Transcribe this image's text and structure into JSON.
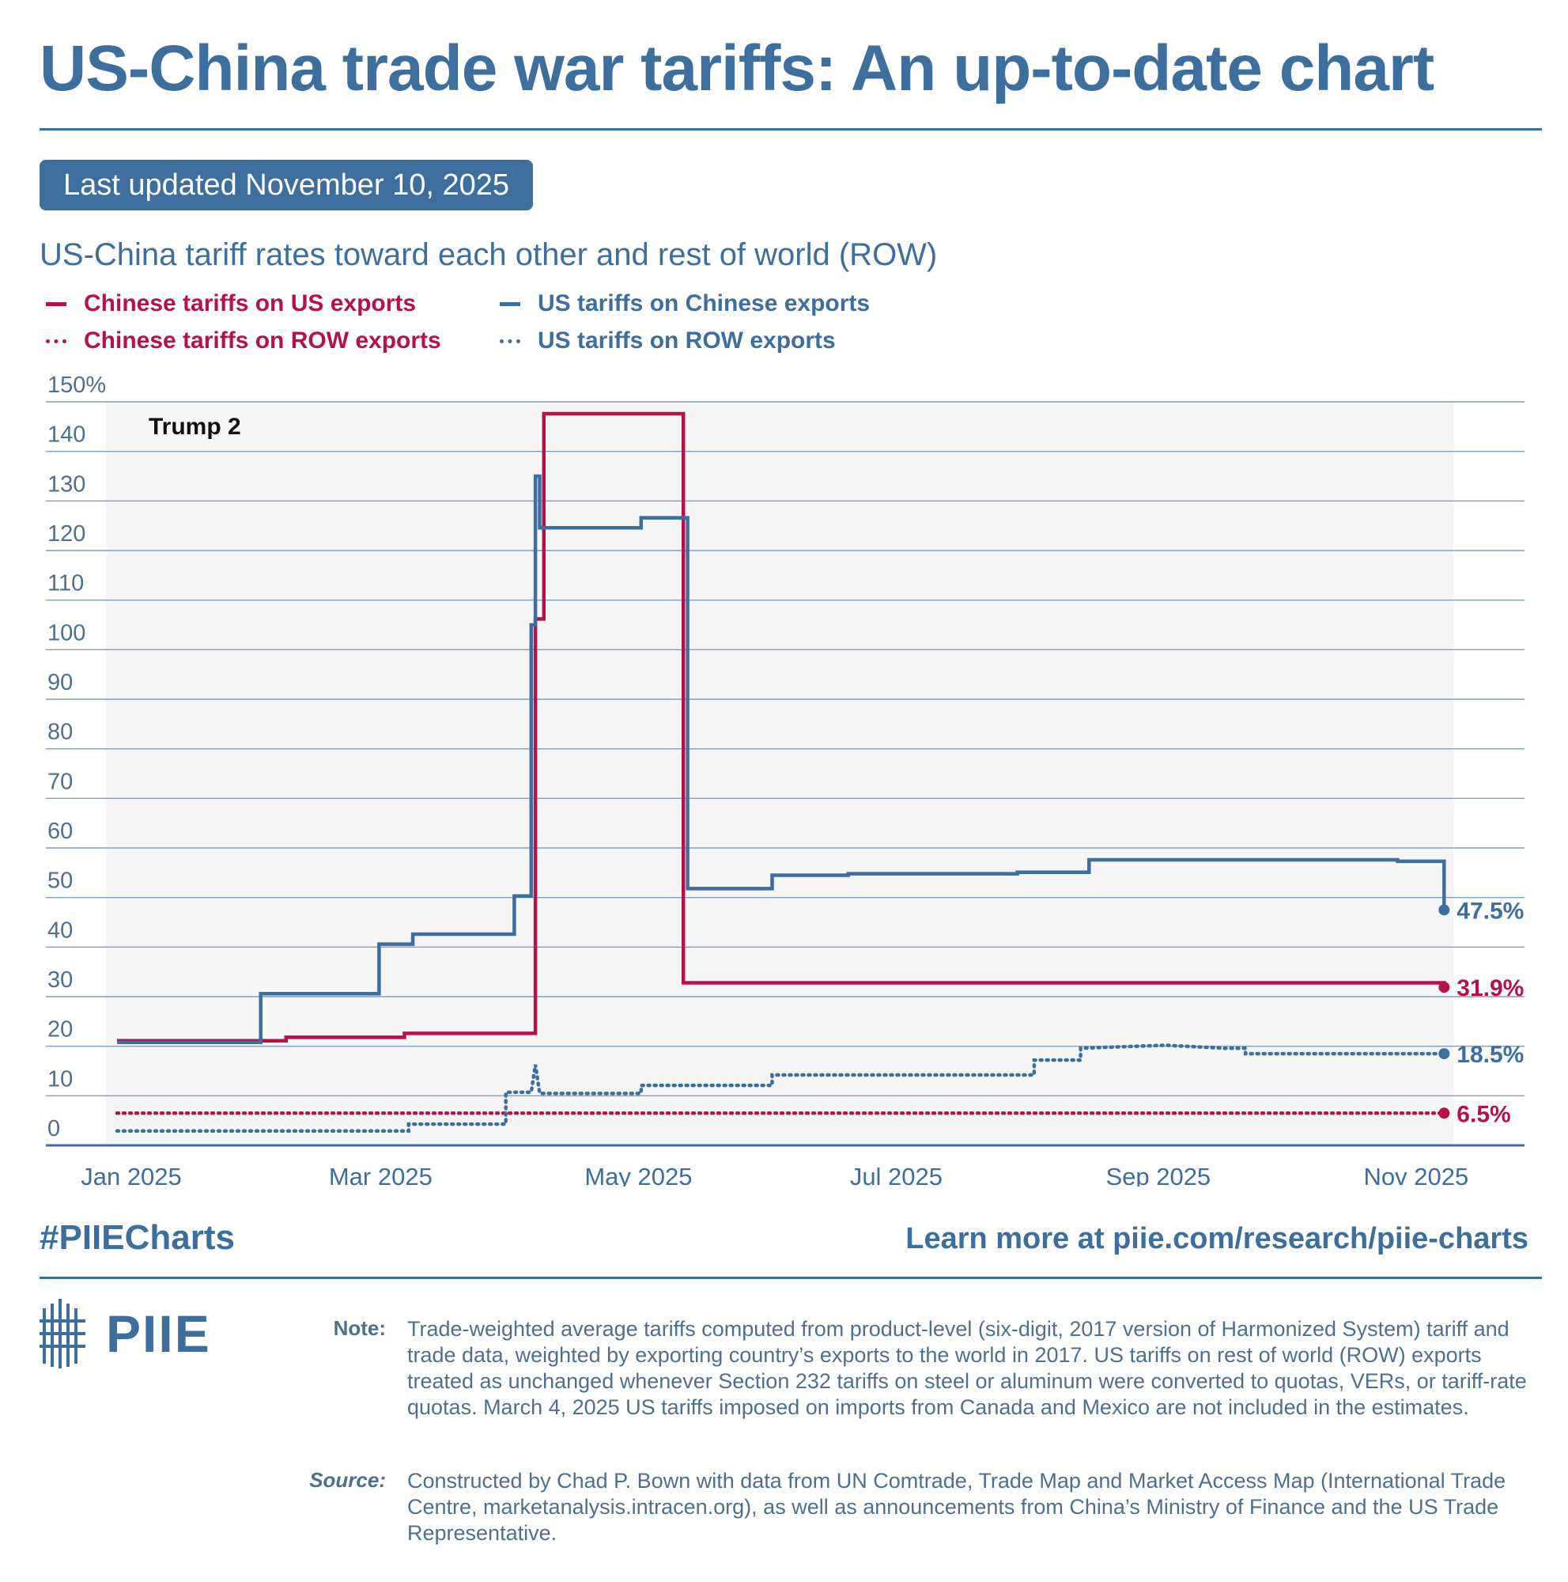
{
  "header": {
    "title": "US-China trade war tariffs: An up-to-date chart",
    "updated": "Last updated November 10, 2025",
    "subtitle": "US-China tariff rates toward each other and rest of world (ROW)"
  },
  "colors": {
    "brand_blue": "#3d6e9d",
    "china_red": "#b5114f",
    "grid": "#7f9fbf",
    "panel": "#f6f6f6"
  },
  "legend": [
    {
      "label": "Chinese tariffs on US exports",
      "style": "solid",
      "color": "#b5114f"
    },
    {
      "label": "US tariffs on Chinese exports",
      "style": "solid",
      "color": "#3d6e9d"
    },
    {
      "label": "Chinese tariffs on ROW exports",
      "style": "dotted",
      "color": "#b5114f"
    },
    {
      "label": "US tariffs on ROW exports",
      "style": "dotted",
      "color": "#3d6e9d"
    }
  ],
  "chart_data": {
    "type": "line",
    "step": true,
    "title": "US-China tariff rates toward each other and rest of world (ROW)",
    "annotation": "Trump 2",
    "ylim": [
      0,
      150
    ],
    "y_ticks": [
      0,
      10,
      20,
      30,
      40,
      50,
      60,
      70,
      80,
      90,
      100,
      110,
      120,
      130,
      140,
      150
    ],
    "y_tick_labels": [
      "0",
      "10",
      "20",
      "30",
      "40",
      "50",
      "60",
      "70",
      "80",
      "90",
      "100",
      "110",
      "120",
      "130",
      "140",
      "150%"
    ],
    "xlim": [
      0,
      316
    ],
    "x_ticks": [
      {
        "label": "Jan 2025",
        "value": 0
      },
      {
        "label": "Mar 2025",
        "value": 59
      },
      {
        "label": "May 2025",
        "value": 120
      },
      {
        "label": "Jul 2025",
        "value": 181
      },
      {
        "label": "Sep 2025",
        "value": 243
      },
      {
        "label": "Nov 2025",
        "value": 304
      }
    ],
    "x_unit": "days since Jan 1, 2025",
    "series": [
      {
        "name": "US tariffs on Chinese exports",
        "style": "solid",
        "color": "#3d6e9d",
        "end_label": "47.5%",
        "points": [
          [
            0,
            20.8
          ],
          [
            34,
            20.8
          ],
          [
            34,
            30.6
          ],
          [
            62,
            30.6
          ],
          [
            62,
            40.6
          ],
          [
            70,
            40.6
          ],
          [
            70,
            42.6
          ],
          [
            94,
            42.6
          ],
          [
            94,
            50.3
          ],
          [
            98,
            50.3
          ],
          [
            98,
            105
          ],
          [
            99,
            105
          ],
          [
            99,
            135
          ],
          [
            100,
            135
          ],
          [
            100,
            124.6
          ],
          [
            124,
            124.6
          ],
          [
            124,
            126.6
          ],
          [
            135,
            126.6
          ],
          [
            135,
            51.8
          ],
          [
            155,
            51.8
          ],
          [
            155,
            54.5
          ],
          [
            173,
            54.5
          ],
          [
            173,
            54.8
          ],
          [
            213,
            54.8
          ],
          [
            213,
            55.1
          ],
          [
            230,
            55.1
          ],
          [
            230,
            57.6
          ],
          [
            303,
            57.6
          ],
          [
            303,
            57.3
          ],
          [
            314,
            57.3
          ],
          [
            314,
            47.5
          ]
        ]
      },
      {
        "name": "Chinese tariffs on US exports",
        "style": "solid",
        "color": "#b5114f",
        "end_label": "31.9%",
        "points": [
          [
            0,
            21.1
          ],
          [
            40,
            21.1
          ],
          [
            40,
            21.8
          ],
          [
            68,
            21.8
          ],
          [
            68,
            22.6
          ],
          [
            99,
            22.6
          ],
          [
            99,
            106.2
          ],
          [
            101,
            106.2
          ],
          [
            101,
            147.6
          ],
          [
            134,
            147.6
          ],
          [
            134,
            32.8
          ],
          [
            314,
            32.8
          ],
          [
            314,
            31.9
          ]
        ]
      },
      {
        "name": "US tariffs on ROW exports",
        "style": "dotted",
        "color": "#3d6e9d",
        "end_label": "18.5%",
        "points": [
          [
            0,
            2.9
          ],
          [
            69,
            2.9
          ],
          [
            69,
            4.3
          ],
          [
            92,
            4.3
          ],
          [
            92,
            10.7
          ],
          [
            98,
            10.7
          ],
          [
            99,
            16.3
          ],
          [
            100,
            10.5
          ],
          [
            124,
            10.5
          ],
          [
            124,
            12.1
          ],
          [
            155,
            12.1
          ],
          [
            155,
            14.2
          ],
          [
            217,
            14.2
          ],
          [
            217,
            17.2
          ],
          [
            228,
            17.2
          ],
          [
            228,
            19.6
          ],
          [
            248,
            20.2
          ],
          [
            262,
            19.6
          ],
          [
            267,
            19.6
          ],
          [
            267,
            18.5
          ],
          [
            314,
            18.5
          ]
        ]
      },
      {
        "name": "Chinese tariffs on ROW exports",
        "style": "dotted",
        "color": "#b5114f",
        "end_label": "6.5%",
        "points": [
          [
            0,
            6.5
          ],
          [
            314,
            6.5
          ]
        ]
      }
    ]
  },
  "footer": {
    "hashtag": "#PIIECharts",
    "learn_more": "Learn more at piie.com/research/piie-charts",
    "logo_text": "PIIE",
    "note_label": "Note:",
    "note_text": "Trade-weighted average tariffs computed from product-level (six-digit, 2017 version of Harmonized System) tariff and trade data, weighted by exporting country’s exports to the world in 2017. US tariffs on rest of world (ROW) exports treated as unchanged whenever Section 232 tariffs on steel or aluminum were converted to quotas, VERs, or tariff-rate quotas. March 4, 2025 US tariffs imposed on imports from Canada and Mexico are not included in the estimates.",
    "source_label": "Source:",
    "source_text": "Constructed by Chad P. Bown with data from UN Comtrade, Trade Map and Market Access Map (International Trade Centre, marketanalysis.intracen.org), as well as announcements from China’s Ministry of Finance and the US Trade Representative."
  }
}
